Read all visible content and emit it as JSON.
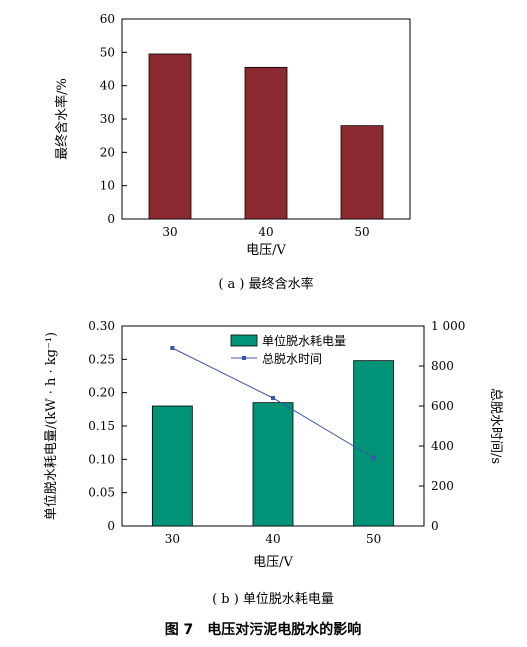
{
  "figure_caption": "图 7　电压对污泥电脱水的影响",
  "chart_data": [
    {
      "type": "bar",
      "caption": "( a ) 最终含水率",
      "categories": [
        "30",
        "40",
        "50"
      ],
      "series": [
        {
          "values": [
            49.5,
            45.5,
            28.0
          ],
          "color": "#8b2a33"
        }
      ],
      "xlabel": "电压/V",
      "ylabel": "最终含水率/%",
      "ylim": [
        0,
        60
      ],
      "yticks": [
        "0",
        "10",
        "20",
        "30",
        "40",
        "50",
        "60"
      ],
      "grid": false
    },
    {
      "type": "bar",
      "caption": "( b ) 单位脱水耗电量",
      "categories": [
        "30",
        "40",
        "50"
      ],
      "series": [
        {
          "name": "单位脱水耗电量",
          "values": [
            0.18,
            0.185,
            0.248
          ],
          "color": "#009378",
          "axis": "left"
        },
        {
          "name": "总脱水时间",
          "type": "line",
          "values": [
            890,
            640,
            340
          ],
          "color": "#3a55a8",
          "axis": "right"
        }
      ],
      "xlabel": "电压/V",
      "ylabel": "单位脱水耗电量/(kW · h · kg⁻¹)",
      "y2label": "总脱水时间/s",
      "ylim": [
        0,
        0.3
      ],
      "y2lim": [
        0,
        1000
      ],
      "yticks": [
        "0",
        "0.05",
        "0.10",
        "0.15",
        "0.20",
        "0.25",
        "0.30"
      ],
      "y2ticks": [
        "0",
        "200",
        "400",
        "600",
        "800",
        "1 000"
      ],
      "legend_position": "top-right",
      "grid": false
    }
  ]
}
